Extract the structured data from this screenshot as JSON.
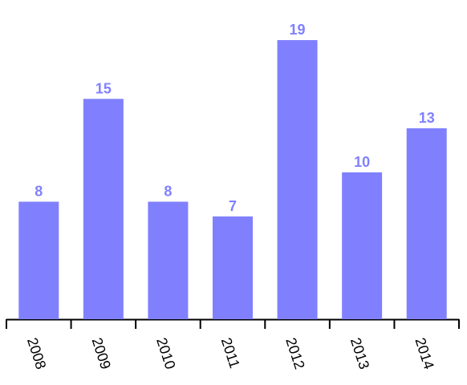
{
  "chart_data": {
    "type": "bar",
    "categories": [
      "2008",
      "2009",
      "2010",
      "2011",
      "2012",
      "2013",
      "2014"
    ],
    "values": [
      8,
      15,
      8,
      7,
      19,
      10,
      13
    ],
    "color": "#8080ff"
  }
}
